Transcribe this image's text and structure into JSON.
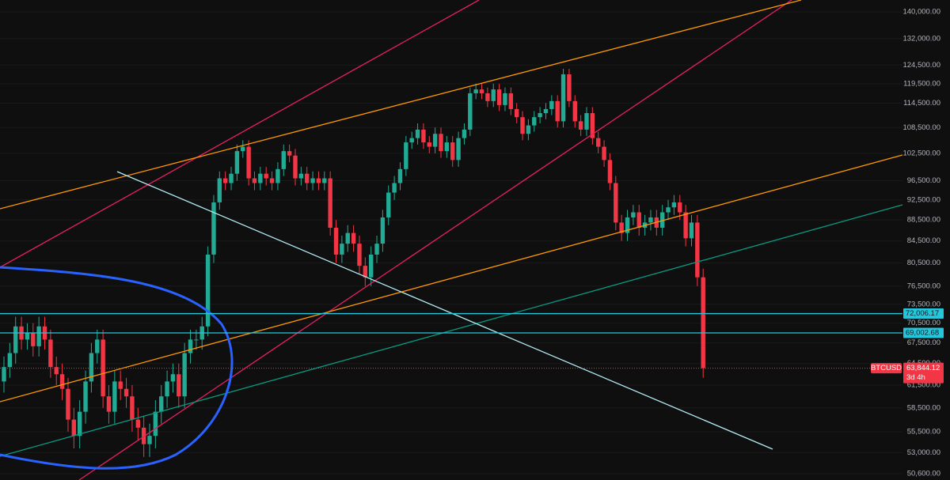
{
  "chart_data": {
    "type": "candlestick",
    "symbol": "BTCUSD",
    "countdown": "3d 4h",
    "last_price": {
      "value": 63844.12,
      "label": "63,844.12"
    },
    "price_lines": [
      {
        "value": 72006.17,
        "label": "72,006.17"
      },
      {
        "value": 69002.68,
        "label": "69,002.68"
      }
    ],
    "log_scale": true,
    "up_color": "#22ab94",
    "down_color": "#f23645",
    "ylim": [
      49900,
      143700
    ],
    "yticks": [
      {
        "value": 140000,
        "label": "140,000.00"
      },
      {
        "value": 132000,
        "label": "132,000.00"
      },
      {
        "value": 124500,
        "label": "124,500.00"
      },
      {
        "value": 119500,
        "label": "119,500.00"
      },
      {
        "value": 114500,
        "label": "114,500.00"
      },
      {
        "value": 108500,
        "label": "108,500.00"
      },
      {
        "value": 102500,
        "label": "102,500.00"
      },
      {
        "value": 96500,
        "label": "96,500.00"
      },
      {
        "value": 92500,
        "label": "92,500.00"
      },
      {
        "value": 88500,
        "label": "88,500.00"
      },
      {
        "value": 84500,
        "label": "84,500.00"
      },
      {
        "value": 80500,
        "label": "80,500.00"
      },
      {
        "value": 76500,
        "label": "76,500.00"
      },
      {
        "value": 73500,
        "label": "73,500.00"
      },
      {
        "value": 70500,
        "label": "70,500.00"
      },
      {
        "value": 67500,
        "label": "67,500.00"
      },
      {
        "value": 64500,
        "label": "64,500.00"
      },
      {
        "value": 61500,
        "label": "61,500.00"
      },
      {
        "value": 58500,
        "label": "58,500.00"
      },
      {
        "value": 55500,
        "label": "55,500.00"
      },
      {
        "value": 53000,
        "label": "53,000.00"
      },
      {
        "value": 50600,
        "label": "50,600.00"
      }
    ],
    "open": [
      62000,
      64000,
      66000,
      70000,
      68000,
      69000,
      67000,
      70000,
      68000,
      64000,
      63000,
      61000,
      57000,
      55000,
      58000,
      62000,
      66000,
      68000,
      60000,
      58000,
      62000,
      61000,
      60000,
      57000,
      56000,
      54000,
      55000,
      58000,
      60000,
      62000,
      63000,
      60000,
      66000,
      68000,
      68000,
      70000,
      82000,
      92000,
      97000,
      96000,
      98000,
      103000,
      104000,
      97000,
      96000,
      98000,
      97000,
      96000,
      99000,
      103000,
      102000,
      97000,
      98000,
      96000,
      97000,
      96000,
      97000,
      87000,
      82000,
      84000,
      86000,
      84000,
      80000,
      78000,
      82000,
      84000,
      89000,
      94000,
      96000,
      99000,
      105000,
      106000,
      108000,
      105000,
      104000,
      107000,
      103000,
      105000,
      101000,
      106000,
      108000,
      117000,
      118000,
      117000,
      115000,
      118000,
      114000,
      117000,
      113000,
      111000,
      107000,
      109000,
      111000,
      112000,
      113000,
      115000,
      110000,
      122000,
      115000,
      110000,
      108000,
      112000,
      106000,
      104000,
      101000,
      96000,
      88000,
      86000,
      89000,
      90000,
      87000,
      88000,
      89000,
      87000,
      90000,
      91000,
      92000,
      90000,
      85000,
      88000,
      78000
    ],
    "high": [
      65500,
      67500,
      71500,
      71500,
      70500,
      70500,
      71500,
      71500,
      69500,
      65500,
      64500,
      62500,
      58500,
      59500,
      63500,
      67500,
      69500,
      69500,
      61500,
      63500,
      63500,
      62500,
      61500,
      58500,
      57500,
      56500,
      59500,
      61500,
      63500,
      64500,
      64500,
      67500,
      69500,
      69500,
      71500,
      83500,
      93500,
      98500,
      98500,
      99500,
      104500,
      105500,
      105500,
      98500,
      99500,
      99500,
      98500,
      100500,
      104500,
      104500,
      103500,
      99500,
      99500,
      98500,
      98500,
      98500,
      98500,
      88500,
      85500,
      87500,
      87500,
      85500,
      81500,
      83500,
      85500,
      90500,
      95500,
      97500,
      100500,
      106500,
      107500,
      109500,
      109500,
      106500,
      108500,
      108500,
      106500,
      106500,
      107500,
      109500,
      118500,
      119500,
      119500,
      118500,
      119500,
      119500,
      118500,
      118500,
      114500,
      112500,
      110500,
      112500,
      113500,
      114500,
      116500,
      116500,
      123500,
      123500,
      116500,
      111500,
      113500,
      113500,
      107500,
      105500,
      102500,
      97500,
      89500,
      90500,
      91500,
      91500,
      89500,
      90500,
      90500,
      91500,
      92500,
      93500,
      93500,
      91500,
      89500,
      89500,
      79500
    ],
    "low": [
      60500,
      62500,
      64500,
      66500,
      66500,
      65500,
      65500,
      66500,
      62500,
      61500,
      59500,
      55500,
      53500,
      53500,
      56500,
      60500,
      64500,
      58500,
      56500,
      56500,
      59500,
      58500,
      55500,
      54500,
      52500,
      52500,
      53500,
      56500,
      58500,
      60500,
      58500,
      58500,
      64500,
      66500,
      66500,
      68500,
      80500,
      90500,
      94500,
      94500,
      96500,
      101500,
      95500,
      94500,
      94500,
      95500,
      94500,
      94500,
      97500,
      100500,
      95500,
      95500,
      94500,
      94500,
      94500,
      94500,
      85500,
      80500,
      80500,
      82500,
      82500,
      78500,
      76500,
      76500,
      80500,
      82500,
      87500,
      92500,
      94500,
      97500,
      103500,
      104500,
      103500,
      102500,
      102500,
      101500,
      101500,
      99500,
      99500,
      104500,
      106500,
      115500,
      115500,
      113500,
      113500,
      112500,
      112500,
      111500,
      109500,
      105500,
      105500,
      107500,
      109500,
      110500,
      111500,
      108500,
      108500,
      113500,
      108500,
      106500,
      106500,
      104500,
      102500,
      99500,
      94500,
      86500,
      84500,
      84500,
      87500,
      85500,
      85500,
      86500,
      85500,
      85500,
      88500,
      89500,
      88500,
      83500,
      83500,
      76500,
      62500
    ],
    "close": [
      64000,
      66000,
      70000,
      68000,
      69000,
      67000,
      70000,
      68000,
      64000,
      63000,
      61000,
      57000,
      55000,
      58000,
      62000,
      66000,
      68000,
      60000,
      58000,
      62000,
      61000,
      60000,
      57000,
      56000,
      54000,
      55000,
      58000,
      60000,
      62000,
      63000,
      60000,
      66000,
      68000,
      68000,
      70000,
      82000,
      92000,
      97000,
      96000,
      98000,
      103000,
      104000,
      97000,
      96000,
      98000,
      97000,
      96000,
      99000,
      103000,
      102000,
      97000,
      98000,
      96000,
      97000,
      96000,
      97000,
      87000,
      82000,
      84000,
      86000,
      84000,
      80000,
      78000,
      82000,
      84000,
      89000,
      94000,
      96000,
      99000,
      105000,
      106000,
      108000,
      105000,
      104000,
      107000,
      103000,
      105000,
      101000,
      106000,
      108000,
      117000,
      118000,
      117000,
      115000,
      118000,
      114000,
      117000,
      113000,
      111000,
      107000,
      109000,
      111000,
      112000,
      113000,
      115000,
      110000,
      122000,
      115000,
      110000,
      108000,
      112000,
      106000,
      104000,
      101000,
      96000,
      88000,
      86000,
      89000,
      90000,
      87000,
      88000,
      89000,
      87000,
      90000,
      91000,
      92000,
      90000,
      85000,
      88000,
      78000,
      63844.12
    ]
  }
}
